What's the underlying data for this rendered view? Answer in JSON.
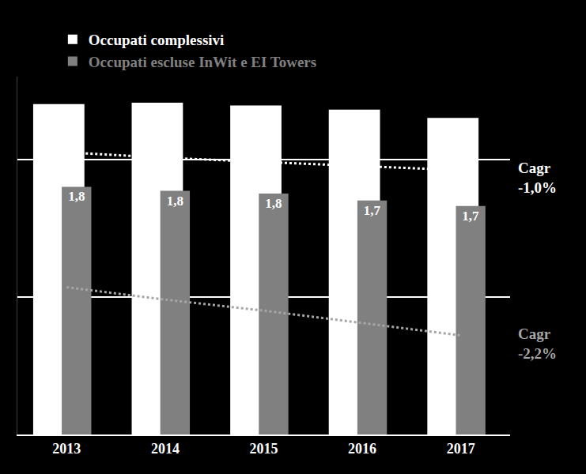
{
  "chart_data": {
    "type": "bar",
    "categories": [
      "2013",
      "2014",
      "2015",
      "2016",
      "2017"
    ],
    "series": [
      {
        "name": "Occupati complessivi",
        "color": "#ffffff",
        "values": [
          2.4,
          2.41,
          2.39,
          2.36,
          2.3
        ]
      },
      {
        "name": "Occupati escluse InWit e EI Towers",
        "color": "#808080",
        "values": [
          1.8,
          1.77,
          1.75,
          1.7,
          1.66
        ],
        "value_labels": [
          "1,8",
          "1,8",
          "1,8",
          "1,7",
          "1,7"
        ]
      },
      {
        "type": "line",
        "color": "#ffffff",
        "line_style": "dotted",
        "values": [
          2.05,
          2.01,
          1.98,
          1.95,
          1.92
        ]
      },
      {
        "type": "line",
        "color": "#a6a6a6",
        "line_style": "dotted",
        "values": [
          1.07,
          0.98,
          0.9,
          0.81,
          0.72
        ]
      }
    ],
    "annotations": [
      {
        "text": "Cagr\n-1,0%",
        "color": "#ffffff"
      },
      {
        "text": "Cagr\n-2,2%",
        "color": "#a6a6a6"
      }
    ],
    "ylim": [
      0,
      2.6
    ],
    "yticks": [
      0,
      1,
      2
    ],
    "grid": true,
    "tick_labels": "x",
    "legend": "top left",
    "data_labels": true
  }
}
